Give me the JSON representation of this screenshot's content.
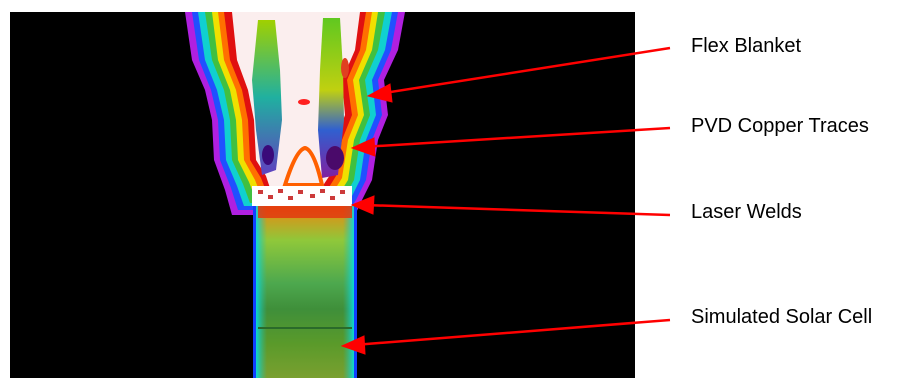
{
  "annotations": [
    {
      "label": "Flex Blanket"
    },
    {
      "label": "PVD Copper Traces"
    },
    {
      "label": "Laser Welds"
    },
    {
      "label": "Simulated Solar Cell"
    }
  ],
  "colors": {
    "arrow": "#ff0000",
    "background": "#000000",
    "blanket_hot": "#fbeeee",
    "cell_top": "#cc4a14",
    "cell_mid": "#5aa84a",
    "cell_edge": "#00e5e5",
    "outline": "#cc33ff"
  }
}
